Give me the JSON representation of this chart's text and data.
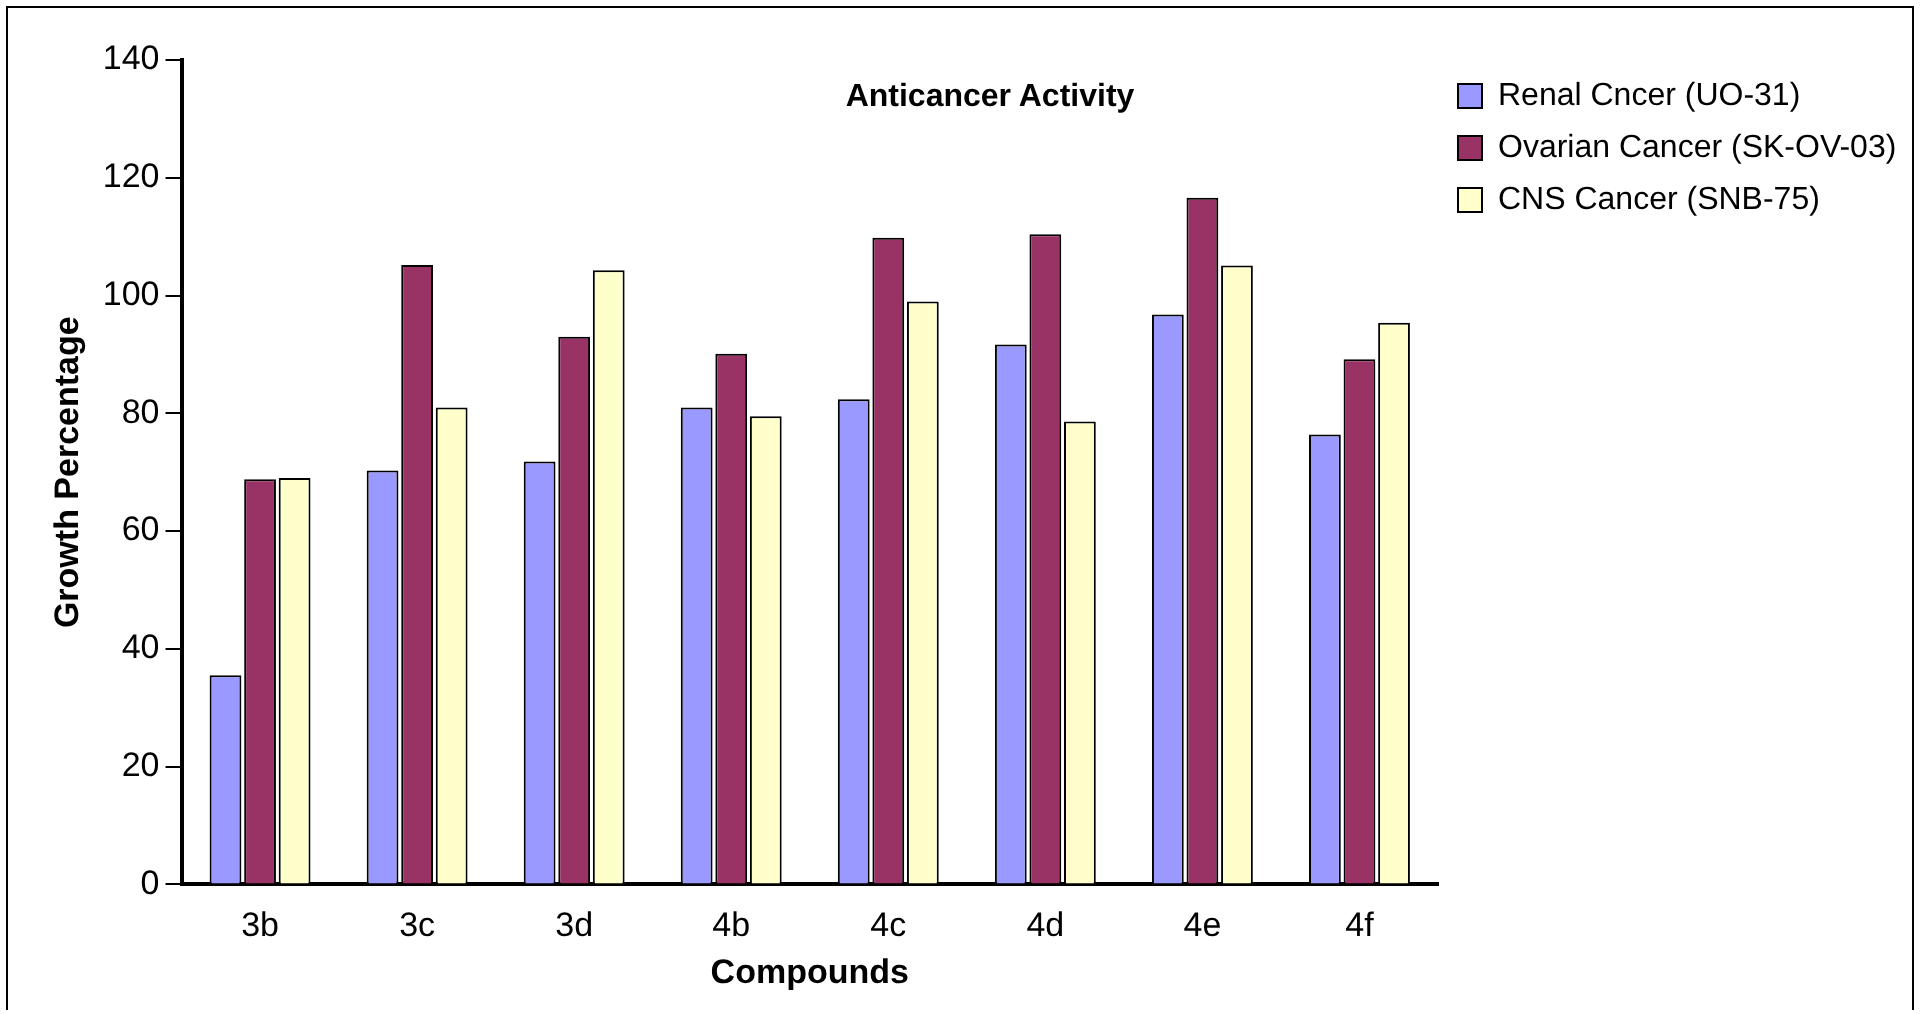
{
  "chart_data": {
    "type": "bar",
    "title": "Anticancer Activity",
    "xlabel": "Compounds",
    "ylabel": "Growth Percentage",
    "categories": [
      "3b",
      "3c",
      "3d",
      "4b",
      "4c",
      "4d",
      "4e",
      "4f"
    ],
    "series": [
      {
        "name": "Renal Cncer (UO-31)",
        "color": "#9999ff",
        "values": [
          35.5,
          70.3,
          71.8,
          81,
          82.4,
          91.7,
          96.8,
          76.4
        ]
      },
      {
        "name": "Ovarian Cancer (SK-OV-03)",
        "color": "#993366",
        "values": [
          68.8,
          105.2,
          93,
          90.1,
          109.8,
          110.4,
          116.6,
          89.2
        ]
      },
      {
        "name": "CNS Cancer (SNB-75)",
        "color": "#ffffcc",
        "values": [
          69,
          81,
          104.3,
          79.5,
          99,
          78.6,
          105.1,
          95.4
        ]
      }
    ],
    "ylim": [
      0,
      140
    ],
    "yticks": [
      0,
      20,
      40,
      60,
      80,
      100,
      120,
      140
    ],
    "grid": false,
    "legend": "top right"
  }
}
